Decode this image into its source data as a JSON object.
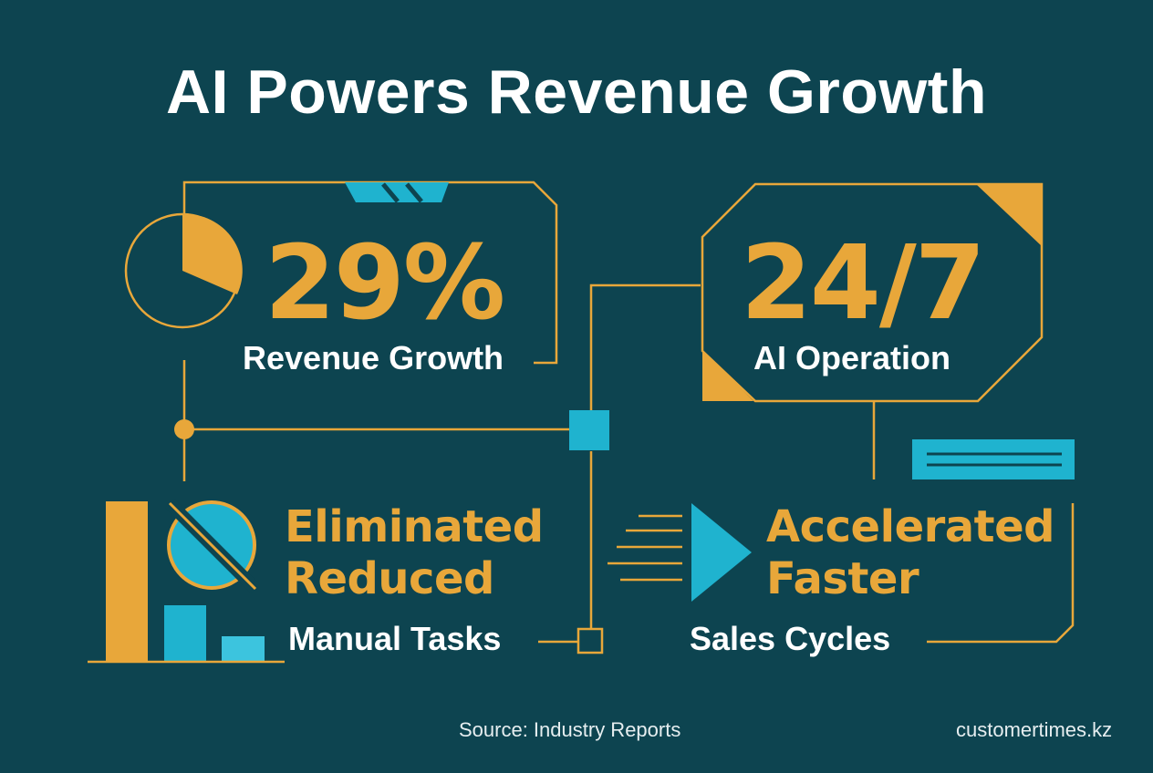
{
  "title": "AI Powers Revenue Growth",
  "stats": {
    "revenue": {
      "value": "29%",
      "label": "Revenue Growth"
    },
    "operation": {
      "value": "24/7",
      "label": "AI Operation"
    }
  },
  "manual_tasks": {
    "line1": "Eliminated",
    "line2": "Reduced",
    "label": "Manual Tasks"
  },
  "sales_cycles": {
    "line1": "Accelerated",
    "line2": "Faster",
    "label": "Sales Cycles"
  },
  "footer": {
    "source": "Source: Industry Reports",
    "brand": "customertimes.kz"
  },
  "colors": {
    "background": "#0d4450",
    "accent_orange": "#e8a73a",
    "accent_cyan": "#1fb3cf",
    "text": "#ffffff"
  },
  "icons": [
    "pie-chart-icon",
    "bar-chart-icon",
    "no-symbol-icon",
    "play-arrow-icon",
    "speed-lines-icon"
  ]
}
